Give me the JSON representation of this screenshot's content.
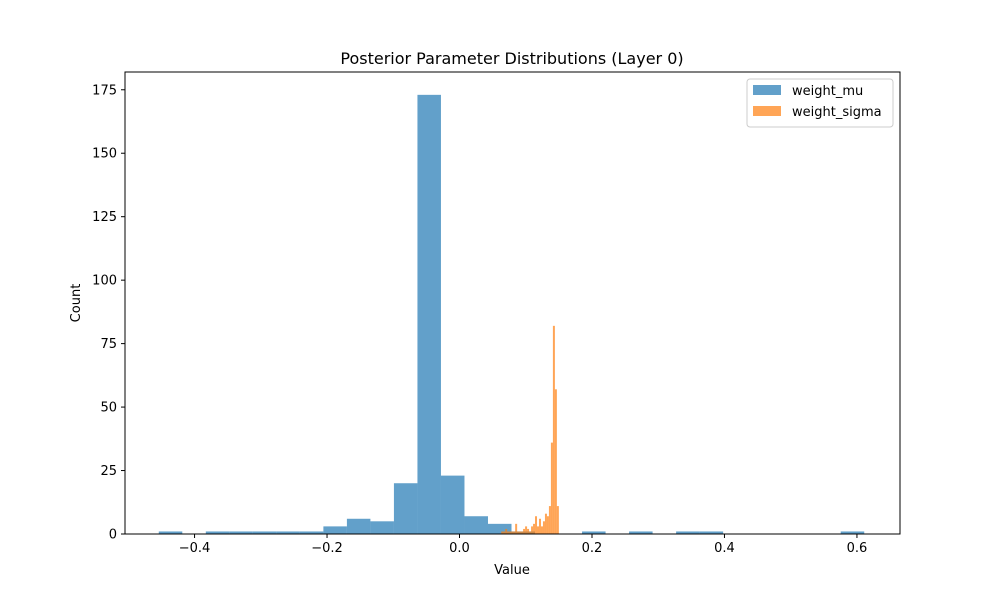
{
  "chart_data": {
    "type": "bar",
    "title": "Posterior Parameter Distributions (Layer 0)",
    "xlabel": "Value",
    "ylabel": "Count",
    "xlim": [
      -0.505,
      0.665
    ],
    "ylim": [
      0,
      182
    ],
    "xticks": [
      -0.4,
      -0.2,
      0.0,
      0.2,
      0.4,
      0.6
    ],
    "xtick_labels": [
      "−0.4",
      "−0.2",
      "0.0",
      "0.2",
      "0.4",
      "0.6"
    ],
    "yticks": [
      0,
      25,
      50,
      75,
      100,
      125,
      150,
      175
    ],
    "ytick_labels": [
      "0",
      "25",
      "50",
      "75",
      "100",
      "125",
      "150",
      "175"
    ],
    "legend_position": "top-right",
    "series": [
      {
        "name": "weight_mu",
        "color": "#1f77b4",
        "opacity": 0.7,
        "bin_edges": [
          -0.454,
          -0.4185,
          -0.383,
          -0.3475,
          -0.312,
          -0.2765,
          -0.241,
          -0.2055,
          -0.17,
          -0.1345,
          -0.099,
          -0.0635,
          -0.028,
          0.0075,
          0.043,
          0.0785,
          0.114,
          0.1495,
          0.185,
          0.2205,
          0.256,
          0.2915,
          0.327,
          0.3625,
          0.398,
          0.4335,
          0.469,
          0.5045,
          0.54,
          0.5755,
          0.611
        ],
        "counts": [
          1,
          0,
          1,
          1,
          1,
          1,
          1,
          3,
          6,
          5,
          20,
          173,
          23,
          7,
          4,
          1,
          0,
          0,
          1,
          0,
          1,
          0,
          1,
          1,
          0,
          0,
          0,
          0,
          0,
          1
        ]
      },
      {
        "name": "weight_sigma",
        "color": "#ff7f0e",
        "opacity": 0.7,
        "bin_edges": [
          0.06,
          0.063,
          0.066,
          0.069,
          0.072,
          0.075,
          0.078,
          0.081,
          0.084,
          0.087,
          0.09,
          0.093,
          0.096,
          0.099,
          0.102,
          0.105,
          0.108,
          0.111,
          0.114,
          0.117,
          0.12,
          0.123,
          0.126,
          0.129,
          0.132,
          0.135,
          0.138,
          0.141,
          0.144,
          0.147,
          0.15
        ],
        "counts": [
          0,
          1,
          1,
          2,
          1,
          1,
          1,
          1,
          4,
          1,
          1,
          1,
          2,
          3,
          2,
          1,
          3,
          4,
          7,
          3,
          6,
          3,
          5,
          8,
          7,
          11,
          36,
          82,
          57,
          11
        ]
      }
    ]
  }
}
